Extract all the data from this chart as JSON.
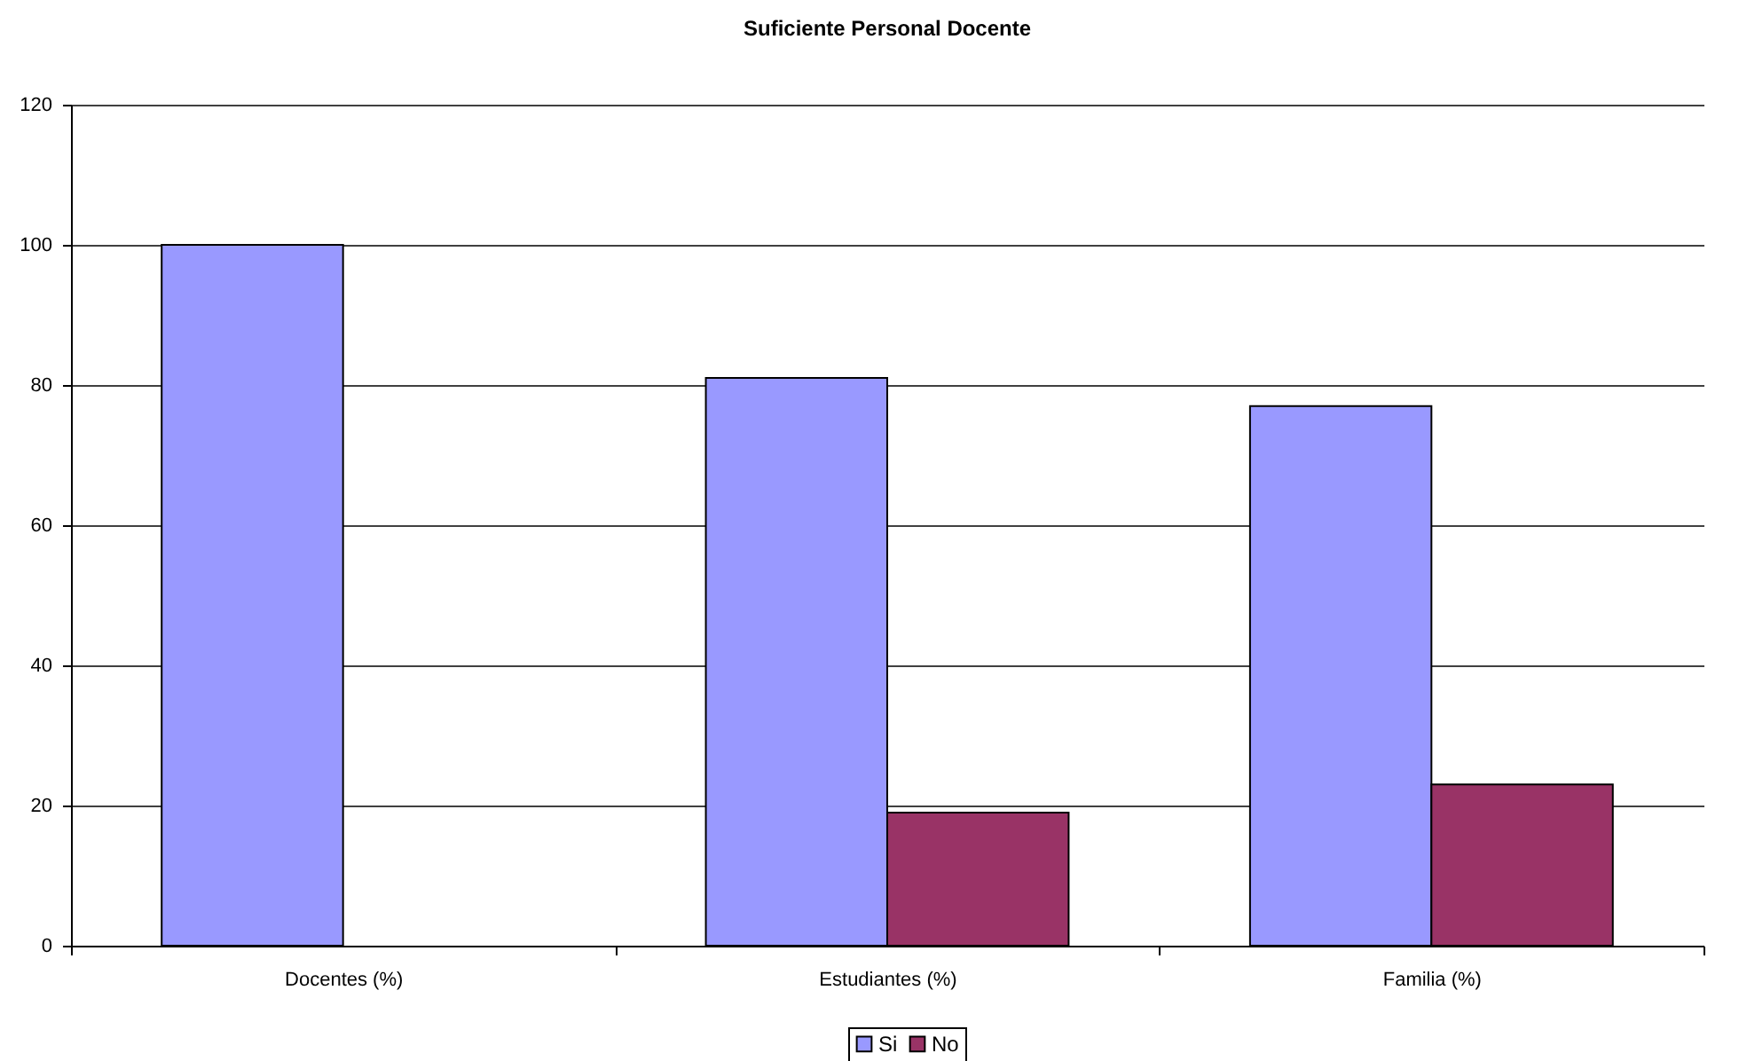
{
  "chart_data": {
    "type": "bar",
    "title": "Suficiente Personal Docente",
    "categories": [
      "Docentes (%)",
      "Estudiantes (%)",
      "Familia (%)"
    ],
    "series": [
      {
        "name": "Si",
        "color": "#9999ff",
        "values": [
          100,
          81,
          77
        ]
      },
      {
        "name": "No",
        "color": "#993366",
        "values": [
          null,
          19,
          23
        ]
      }
    ],
    "ylim": [
      0,
      120
    ],
    "yticks": [
      0,
      20,
      40,
      60,
      80,
      100,
      120
    ],
    "grid": "y",
    "legend": "bottom"
  }
}
